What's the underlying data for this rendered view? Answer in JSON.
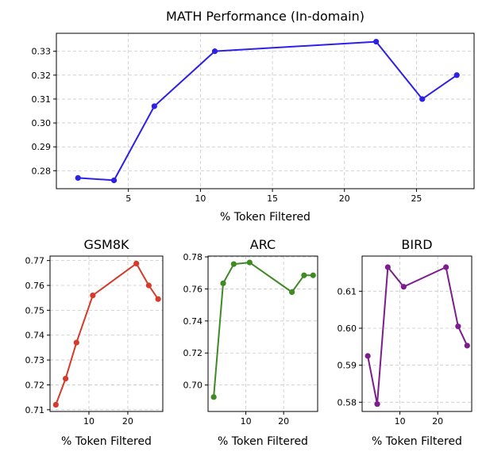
{
  "chart_data": [
    {
      "type": "line",
      "title": "MATH Performance (In-domain)",
      "xlabel": "% Token Filtered",
      "ylabel": "",
      "x": [
        1.5,
        4.0,
        6.8,
        11.0,
        22.2,
        25.4,
        27.8
      ],
      "series": [
        {
          "values": [
            0.277,
            0.276,
            0.307,
            0.33,
            0.334,
            0.31,
            0.32
          ]
        }
      ],
      "color": "#2d21e6",
      "xlim": [
        0,
        29
      ],
      "ylim": [
        0.2725,
        0.3375
      ],
      "xticks": [
        5,
        10,
        15,
        20,
        25
      ],
      "xtick_labels": [
        "5",
        "10",
        "15",
        "20",
        "25"
      ],
      "yticks": [
        0.28,
        0.29,
        0.3,
        0.31,
        0.32,
        0.33
      ],
      "ytick_labels": [
        "0.28",
        "0.29",
        "0.30",
        "0.31",
        "0.32",
        "0.33"
      ],
      "grid": true
    },
    {
      "type": "line",
      "title": "GSM8K",
      "xlabel": "% Token Filtered",
      "ylabel": "",
      "x": [
        1.5,
        4.0,
        6.8,
        11.0,
        22.2,
        25.4,
        27.8
      ],
      "series": [
        {
          "values": [
            0.712,
            0.7225,
            0.737,
            0.756,
            0.7688,
            0.76,
            0.7545
          ]
        }
      ],
      "color": "#d43b2b",
      "xlim": [
        0,
        29
      ],
      "ylim": [
        0.7093,
        0.7718
      ],
      "xticks": [
        10,
        20
      ],
      "xtick_labels": [
        "10",
        "20"
      ],
      "yticks": [
        0.71,
        0.72,
        0.73,
        0.74,
        0.75,
        0.76,
        0.77
      ],
      "ytick_labels": [
        "0.71",
        "0.72",
        "0.73",
        "0.74",
        "0.75",
        "0.76",
        "0.77"
      ],
      "grid": true
    },
    {
      "type": "line",
      "title": "ARC",
      "xlabel": "% Token Filtered",
      "ylabel": "",
      "x": [
        1.5,
        4.0,
        6.8,
        11.0,
        22.2,
        25.4,
        27.8
      ],
      "series": [
        {
          "values": [
            0.6925,
            0.7635,
            0.7755,
            0.7765,
            0.758,
            0.7685,
            0.7685
          ]
        }
      ],
      "color": "#3f8a25",
      "xlim": [
        0,
        29
      ],
      "ylim": [
        0.6835,
        0.7805
      ],
      "xticks": [
        10,
        20
      ],
      "xtick_labels": [
        "10",
        "20"
      ],
      "yticks": [
        0.7,
        0.72,
        0.74,
        0.76,
        0.78
      ],
      "ytick_labels": [
        "0.70",
        "0.72",
        "0.74",
        "0.76",
        "0.78"
      ],
      "grid": true
    },
    {
      "type": "line",
      "title": "BIRD",
      "xlabel": "% Token Filtered",
      "ylabel": "",
      "x": [
        1.5,
        4.0,
        6.8,
        11.0,
        22.2,
        25.4,
        27.8
      ],
      "series": [
        {
          "values": [
            0.5925,
            0.5795,
            0.6165,
            0.6112,
            0.6165,
            0.6005,
            0.5953
          ]
        }
      ],
      "color": "#7d1d8d",
      "xlim": [
        0,
        29
      ],
      "ylim": [
        0.5775,
        0.6195
      ],
      "xticks": [
        10,
        20
      ],
      "xtick_labels": [
        "10",
        "20"
      ],
      "yticks": [
        0.58,
        0.59,
        0.6,
        0.61
      ],
      "ytick_labels": [
        "0.58",
        "0.59",
        "0.60",
        "0.61"
      ],
      "grid": true
    }
  ]
}
